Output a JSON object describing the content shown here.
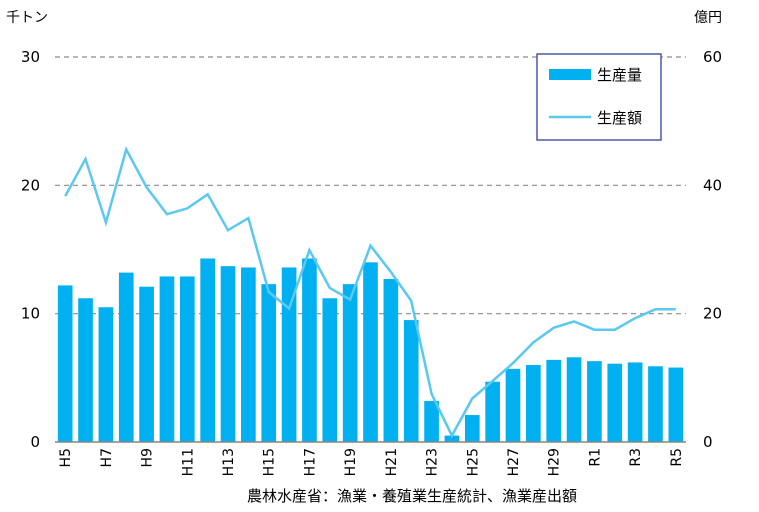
{
  "chart_data": {
    "type": "bar+line",
    "left_unit": "千トン",
    "right_unit": "億円",
    "ylim_left": [
      0,
      30
    ],
    "ylim_right": [
      0,
      60
    ],
    "left_ticks": [
      "0",
      "10",
      "20",
      "30"
    ],
    "right_ticks": [
      "0",
      "20",
      "40",
      "60"
    ],
    "x_tick_labels": [
      "H5",
      "H7",
      "H9",
      "H11",
      "H13",
      "H15",
      "H17",
      "H19",
      "H21",
      "H23",
      "H25",
      "H27",
      "H29",
      "R1",
      "R3",
      "R5"
    ],
    "categories": [
      "H5",
      "H6",
      "H7",
      "H8",
      "H9",
      "H10",
      "H11",
      "H12",
      "H13",
      "H14",
      "H15",
      "H16",
      "H17",
      "H18",
      "H19",
      "H20",
      "H21",
      "H22",
      "H23",
      "H24",
      "H25",
      "H26",
      "H27",
      "H28",
      "H29",
      "H30",
      "R1",
      "R2",
      "R3",
      "R4",
      "R5"
    ],
    "series": [
      {
        "name": "生産量",
        "type": "bar",
        "axis": "left",
        "color": "#00b0f0",
        "values": [
          12.2,
          11.2,
          10.5,
          13.2,
          12.1,
          12.9,
          12.9,
          14.3,
          13.7,
          13.6,
          12.3,
          13.6,
          14.3,
          11.2,
          12.3,
          14.0,
          12.7,
          9.5,
          3.2,
          0.5,
          2.1,
          4.7,
          5.7,
          6.0,
          6.4,
          6.6,
          6.3,
          6.1,
          6.2,
          5.9,
          5.8
        ]
      },
      {
        "name": "生産額",
        "type": "line",
        "axis": "right",
        "color": "#5bc8f0",
        "values": [
          38.3,
          44.1,
          34.2,
          45.6,
          39.7,
          35.5,
          36.4,
          38.6,
          33.0,
          34.9,
          23.4,
          20.8,
          29.9,
          24.0,
          22.2,
          30.6,
          26.5,
          22.0,
          7.5,
          1.0,
          6.8,
          9.5,
          12.3,
          15.5,
          17.8,
          18.8,
          17.5,
          17.5,
          19.3,
          20.7,
          20.7
        ]
      }
    ],
    "grid": true,
    "legend_position": "top-right"
  },
  "source": "農林水産省：漁業・養殖業生産統計、漁業産出額"
}
